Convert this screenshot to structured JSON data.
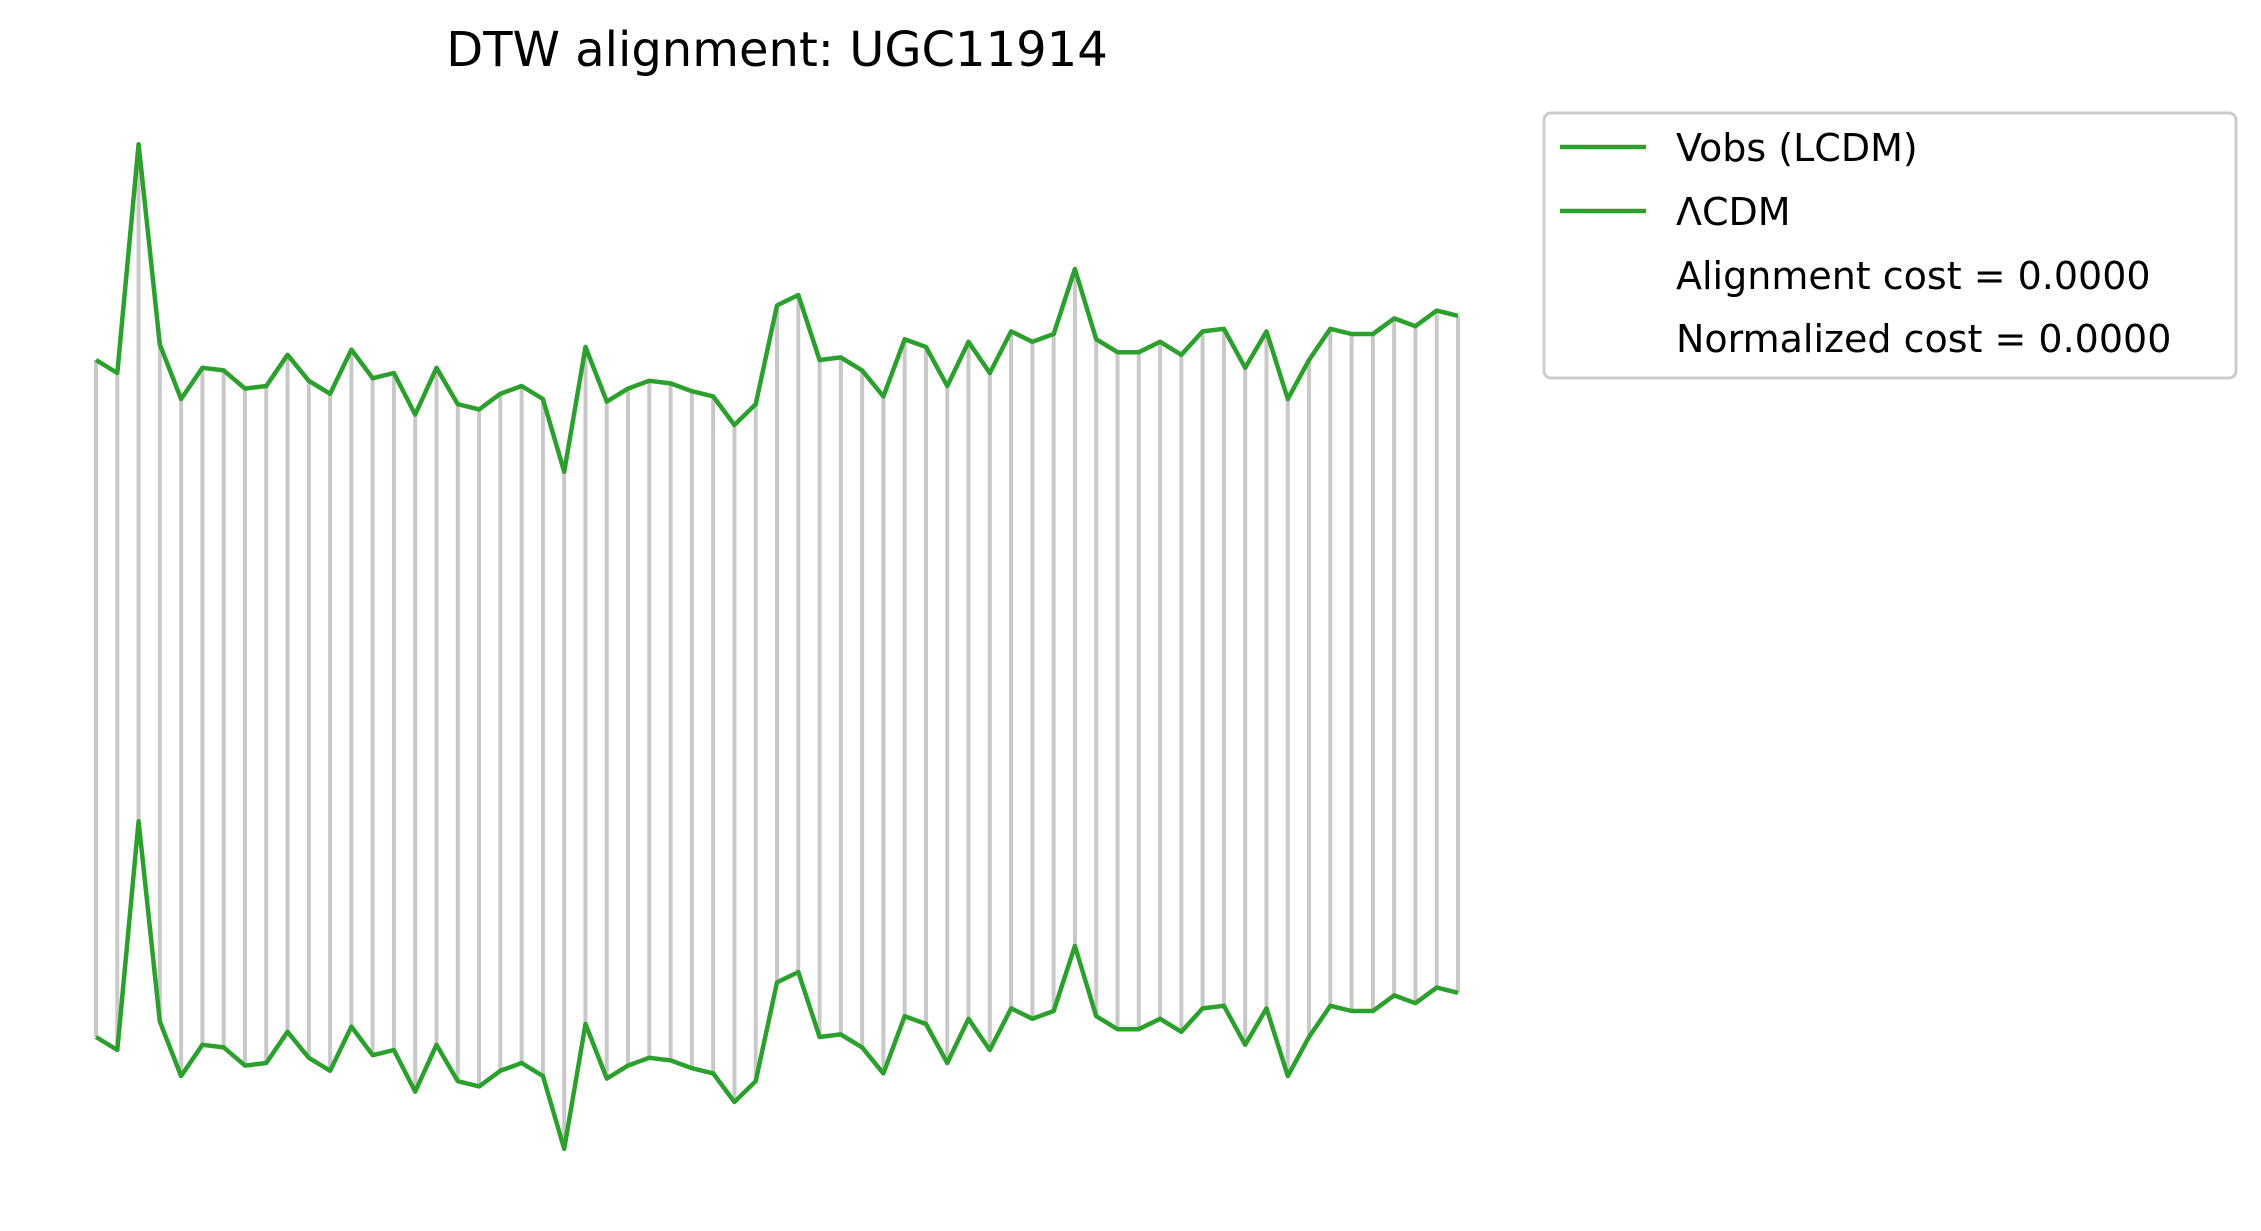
{
  "chart_data": {
    "type": "line",
    "title": "DTW alignment: UGC11914",
    "xlabel": "",
    "ylabel": "",
    "axes_visible": false,
    "grid": false,
    "legend_position": "outside-right-top",
    "line_color": "#2ca02c",
    "connector_color": "#c8c8c8",
    "series": [
      {
        "name": "Vobs (LCDM)",
        "offset_label": "upper"
      },
      {
        "name": "ΛCDM",
        "offset_label": "lower"
      }
    ],
    "values": [
      0.0,
      -0.05,
      0.83,
      0.06,
      -0.15,
      -0.03,
      -0.04,
      -0.11,
      -0.1,
      0.02,
      -0.08,
      -0.13,
      0.04,
      -0.07,
      -0.05,
      -0.21,
      -0.03,
      -0.17,
      -0.19,
      -0.13,
      -0.1,
      -0.15,
      -0.43,
      0.05,
      -0.16,
      -0.11,
      -0.08,
      -0.09,
      -0.12,
      -0.14,
      -0.25,
      -0.17,
      0.21,
      0.25,
      0.0,
      0.01,
      -0.04,
      -0.14,
      0.08,
      0.05,
      -0.1,
      0.07,
      -0.05,
      0.11,
      0.07,
      0.1,
      0.35,
      0.08,
      0.03,
      0.03,
      0.07,
      0.02,
      0.11,
      0.12,
      -0.03,
      0.11,
      -0.15,
      0.0,
      0.12,
      0.1,
      0.1,
      0.16,
      0.13,
      0.19,
      0.17
    ],
    "alignment": "one-to-one",
    "annotations": [
      "Alignment cost = 0.0000",
      "Normalized cost = 0.0000"
    ]
  }
}
